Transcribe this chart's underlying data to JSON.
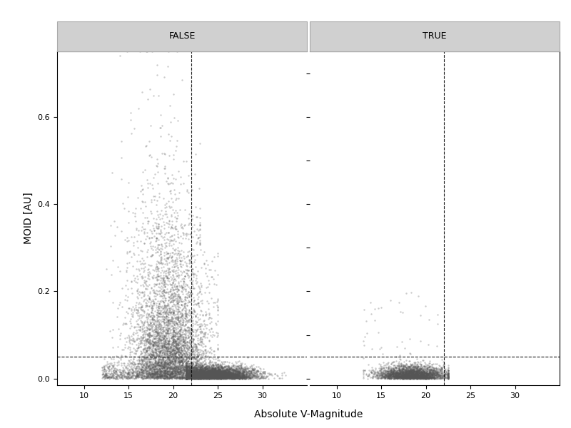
{
  "title_false": "FALSE",
  "title_true": "TRUE",
  "xlabel": "Absolute V-Magnitude",
  "ylabel": "MOID [AU]",
  "xlim": [
    7,
    35
  ],
  "ylim": [
    -0.015,
    0.75
  ],
  "hline_y": 0.05,
  "vline_x_false": 22.0,
  "vline_x_true": 22.0,
  "point_color": "#555555",
  "point_alpha": 0.3,
  "point_size": 3,
  "background_color": "#ffffff",
  "panel_header_color": "#d0d0d0",
  "panel_header_edge": "#aaaaaa",
  "seed": 42,
  "xticks": [
    10,
    15,
    20,
    25,
    30
  ],
  "yticks": [
    0.0,
    0.2,
    0.4,
    0.6
  ],
  "figsize": [
    8.0,
    6.0
  ],
  "dpi": 100
}
